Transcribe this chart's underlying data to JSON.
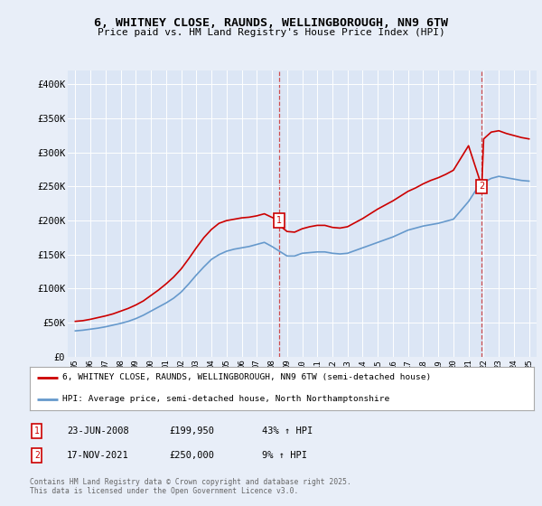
{
  "title_line1": "6, WHITNEY CLOSE, RAUNDS, WELLINGBOROUGH, NN9 6TW",
  "title_line2": "Price paid vs. HM Land Registry's House Price Index (HPI)",
  "bg_color": "#e8eef8",
  "plot_bg_color": "#dce6f5",
  "legend_line1": "6, WHITNEY CLOSE, RAUNDS, WELLINGBOROUGH, NN9 6TW (semi-detached house)",
  "legend_line2": "HPI: Average price, semi-detached house, North Northamptonshire",
  "marker1_date": "23-JUN-2008",
  "marker1_price": "£199,950",
  "marker1_note": "43% ↑ HPI",
  "marker2_date": "17-NOV-2021",
  "marker2_price": "£250,000",
  "marker2_note": "9% ↑ HPI",
  "footer": "Contains HM Land Registry data © Crown copyright and database right 2025.\nThis data is licensed under the Open Government Licence v3.0.",
  "red_color": "#cc0000",
  "blue_color": "#6699cc",
  "marker_box_color": "#cc0000",
  "dashed_line_color": "#cc3333",
  "ylim": [
    0,
    420000
  ],
  "yticks": [
    0,
    50000,
    100000,
    150000,
    200000,
    250000,
    300000,
    350000,
    400000
  ],
  "ytick_labels": [
    "£0",
    "£50K",
    "£100K",
    "£150K",
    "£200K",
    "£250K",
    "£300K",
    "£350K",
    "£400K"
  ],
  "hpi_years": [
    1995.0,
    1995.5,
    1996.0,
    1996.5,
    1997.0,
    1997.5,
    1998.0,
    1998.5,
    1999.0,
    1999.5,
    2000.0,
    2000.5,
    2001.0,
    2001.5,
    2002.0,
    2002.5,
    2003.0,
    2003.5,
    2004.0,
    2004.5,
    2005.0,
    2005.5,
    2006.0,
    2006.5,
    2007.0,
    2007.5,
    2008.0,
    2008.5,
    2009.0,
    2009.5,
    2010.0,
    2010.5,
    2011.0,
    2011.5,
    2012.0,
    2012.5,
    2013.0,
    2013.5,
    2014.0,
    2014.5,
    2015.0,
    2015.5,
    2016.0,
    2016.5,
    2017.0,
    2017.5,
    2018.0,
    2018.5,
    2019.0,
    2019.5,
    2020.0,
    2020.5,
    2021.0,
    2021.5,
    2022.0,
    2022.5,
    2023.0,
    2023.5,
    2024.0,
    2024.5,
    2025.0
  ],
  "hpi_values": [
    38000,
    39000,
    40500,
    42000,
    44000,
    46500,
    49000,
    52000,
    56000,
    61000,
    67000,
    73000,
    79000,
    86000,
    95000,
    107000,
    120000,
    132000,
    143000,
    150000,
    155000,
    158000,
    160000,
    162000,
    165000,
    168000,
    162000,
    155000,
    148000,
    148000,
    152000,
    153000,
    154000,
    154000,
    152000,
    151000,
    152000,
    156000,
    160000,
    164000,
    168000,
    172000,
    176000,
    181000,
    186000,
    189000,
    192000,
    194000,
    196000,
    199000,
    202000,
    215000,
    228000,
    245000,
    256000,
    262000,
    265000,
    263000,
    261000,
    259000,
    258000
  ],
  "red_years": [
    1995.0,
    1995.5,
    1996.0,
    1996.5,
    1997.0,
    1997.5,
    1998.0,
    1998.5,
    1999.0,
    1999.5,
    2000.0,
    2000.5,
    2001.0,
    2001.5,
    2002.0,
    2002.5,
    2003.0,
    2003.5,
    2004.0,
    2004.5,
    2005.0,
    2005.5,
    2006.0,
    2006.5,
    2007.0,
    2007.5,
    2008.458,
    2008.5,
    2009.0,
    2009.5,
    2010.0,
    2010.5,
    2011.0,
    2011.5,
    2012.0,
    2012.5,
    2013.0,
    2013.5,
    2014.0,
    2014.5,
    2015.0,
    2015.5,
    2016.0,
    2016.5,
    2017.0,
    2017.5,
    2018.0,
    2018.5,
    2019.0,
    2019.5,
    2020.0,
    2020.5,
    2021.0,
    2021.88,
    2022.0,
    2022.5,
    2023.0,
    2023.5,
    2024.0,
    2024.5,
    2025.0
  ],
  "red_values": [
    52000,
    53000,
    55000,
    57500,
    60000,
    63000,
    67000,
    71000,
    76000,
    82000,
    90000,
    98000,
    107000,
    117000,
    129000,
    144000,
    160000,
    175000,
    187000,
    196000,
    200000,
    202000,
    204000,
    205000,
    207000,
    210000,
    199950,
    193000,
    184000,
    183000,
    188000,
    191000,
    193000,
    193000,
    190000,
    189000,
    191000,
    197000,
    203000,
    210000,
    217000,
    223000,
    229000,
    236000,
    243000,
    248000,
    254000,
    259000,
    263000,
    268000,
    274000,
    292000,
    310000,
    250000,
    320000,
    330000,
    332000,
    328000,
    325000,
    322000,
    320000
  ]
}
